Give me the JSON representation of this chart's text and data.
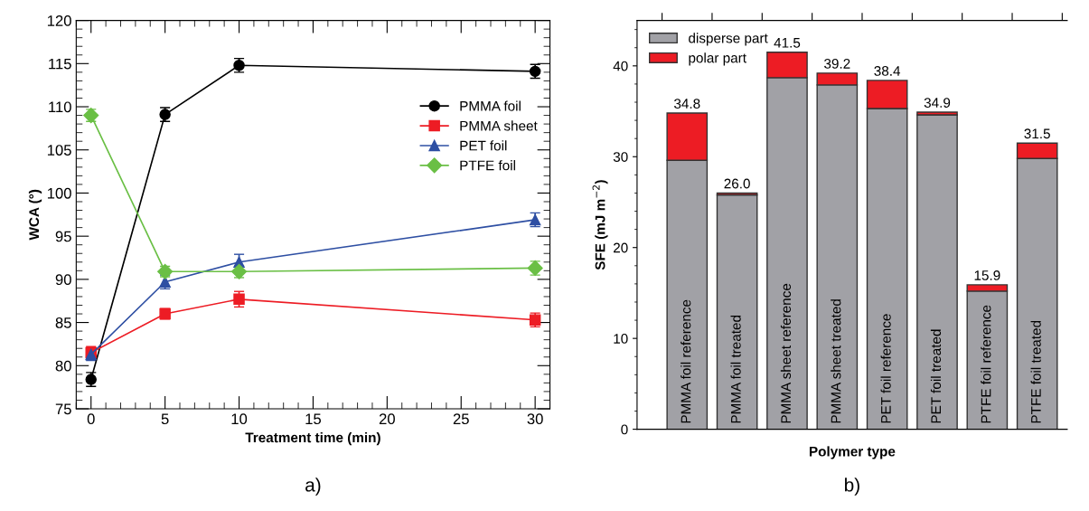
{
  "chart_data": [
    {
      "type": "line",
      "xlabel": "Treatment time (min)",
      "ylabel": "WCA (°)",
      "x": [
        0,
        5,
        10,
        30
      ],
      "xlim": [
        -1,
        31
      ],
      "ylim": [
        75,
        120
      ],
      "xticks": [
        0,
        5,
        10,
        15,
        20,
        25,
        30
      ],
      "yticks": [
        75,
        80,
        85,
        90,
        95,
        100,
        105,
        110,
        115,
        120
      ],
      "legend": "right",
      "grid": false,
      "annotations": [
        "a)"
      ],
      "series": [
        {
          "name": "PMMA foil",
          "color": "#000000",
          "marker": "circle",
          "values": [
            78.4,
            109.1,
            114.8,
            114.1
          ],
          "errors": [
            0.8,
            0.8,
            0.8,
            0.8
          ]
        },
        {
          "name": "PMMA sheet",
          "color": "#ed1c24",
          "marker": "square",
          "values": [
            81.5,
            86.0,
            87.7,
            85.3
          ],
          "errors": [
            0.7,
            0.6,
            0.9,
            0.8
          ]
        },
        {
          "name": "PET foil",
          "color": "#2e4fa3",
          "marker": "triangle",
          "values": [
            81.3,
            89.7,
            92.0,
            96.9
          ],
          "errors": [
            0.7,
            0.8,
            0.9,
            0.8
          ]
        },
        {
          "name": "PTFE foil",
          "color": "#6abf45",
          "marker": "diamond",
          "values": [
            109.0,
            90.9,
            90.9,
            91.3
          ],
          "errors": [
            0.7,
            0.6,
            0.7,
            0.8
          ]
        }
      ]
    },
    {
      "type": "bar",
      "stacked": true,
      "xlabel": "Polymer type",
      "ylabel": "SFE (mJ m$^{−2}$)",
      "ylim": [
        0,
        45
      ],
      "yticks": [
        0,
        10,
        20,
        30,
        40
      ],
      "legend": "top left",
      "grid": false,
      "annotations": [
        "b)"
      ],
      "categories": [
        "PMMA foil reference",
        "PMMA foil treated",
        "PMMA sheet reference",
        "PMMA sheet treated",
        "PET foil reference",
        "PET foil treated",
        "PTFE foil reference",
        "PTFE foil treated"
      ],
      "series": [
        {
          "name": "disperse part",
          "color": "#a1a1a6",
          "values": [
            29.6,
            25.8,
            38.7,
            37.9,
            35.3,
            34.6,
            15.2,
            29.8
          ]
        },
        {
          "name": "polar part",
          "color": "#ed1c24",
          "values": [
            5.2,
            0.2,
            2.8,
            1.3,
            3.1,
            0.3,
            0.7,
            1.7
          ]
        }
      ],
      "totals": [
        "34.8",
        "26.0",
        "41.5",
        "39.2",
        "38.4",
        "34.9",
        "15.9",
        "31.5"
      ]
    }
  ]
}
